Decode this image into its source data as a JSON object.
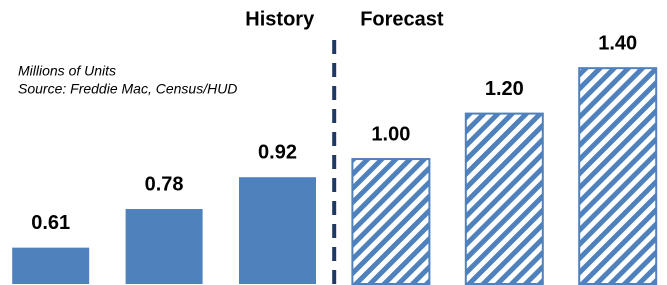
{
  "chart_data": {
    "type": "bar",
    "annotations": [
      "Millions of Units",
      "Source: Freddie Mac, Census/HUD"
    ],
    "series": [
      {
        "name": "History",
        "color": "#4f81bd",
        "hatched": false,
        "values": [
          0.61,
          0.78,
          0.92,
          null,
          null,
          null
        ],
        "value_labels": [
          "0.61",
          "0.78",
          "0.92",
          null,
          null,
          null
        ]
      },
      {
        "name": "Forecast",
        "color": "#4f81bd",
        "hatched": true,
        "values": [
          null,
          null,
          null,
          1.0,
          1.2,
          1.4
        ],
        "value_labels": [
          null,
          null,
          null,
          "1.00",
          "1.20",
          "1.40"
        ]
      }
    ],
    "ylim": [
      0.45,
      1.7
    ]
  }
}
